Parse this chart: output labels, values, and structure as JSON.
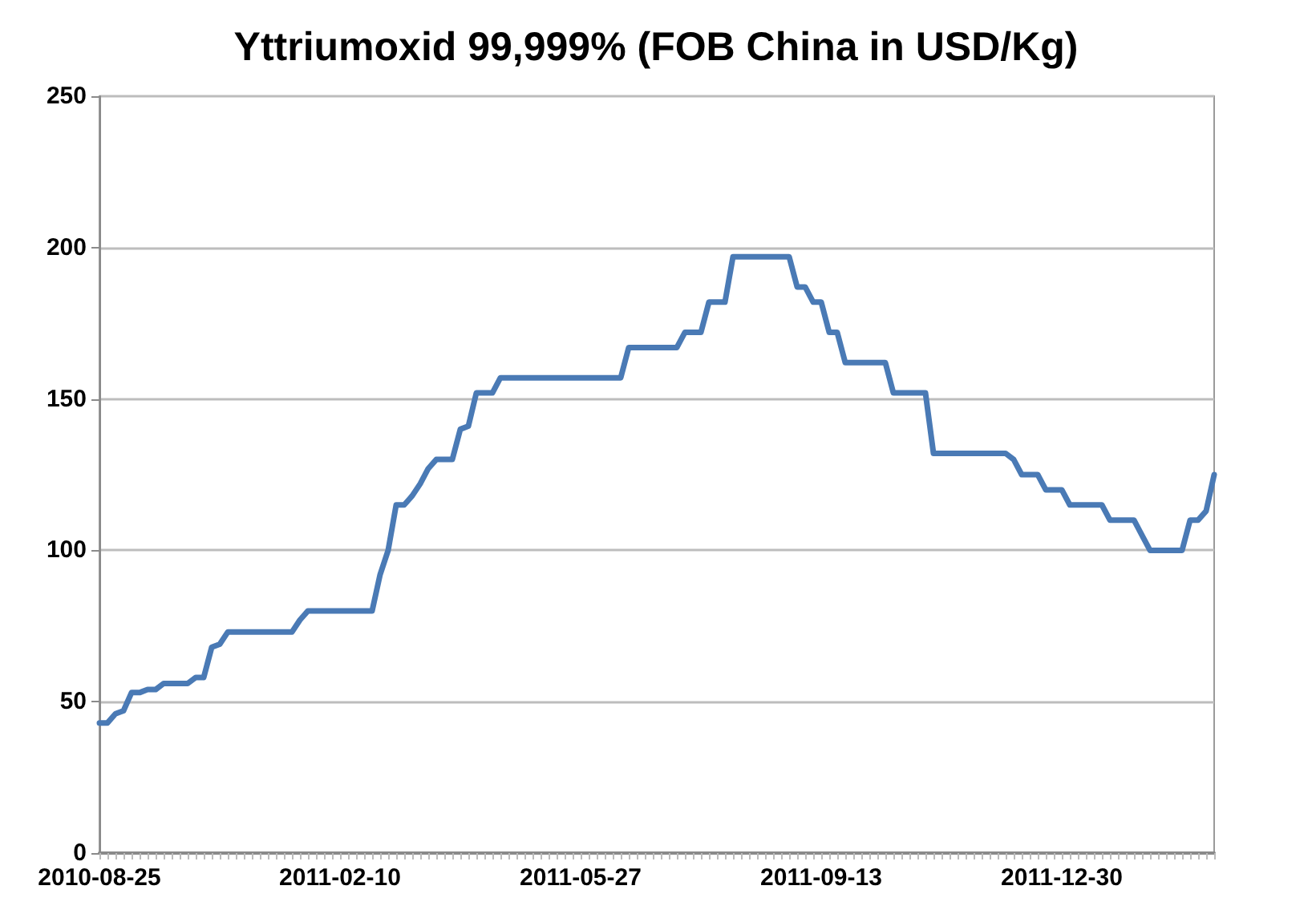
{
  "chart_data": {
    "type": "line",
    "title": "Yttriumoxid 99,999% (FOB China in USD/Kg)",
    "categories": [
      "2010-08-25",
      null,
      null,
      null,
      null,
      null,
      null,
      null,
      null,
      null,
      null,
      null,
      null,
      null,
      null,
      null,
      null,
      null,
      null,
      null,
      null,
      null,
      null,
      null,
      null,
      null,
      null,
      null,
      null,
      null,
      "2011-02-10",
      null,
      null,
      null,
      null,
      null,
      null,
      null,
      null,
      null,
      null,
      null,
      null,
      null,
      null,
      null,
      null,
      null,
      null,
      null,
      null,
      null,
      null,
      null,
      null,
      null,
      null,
      null,
      null,
      null,
      "2011-05-27",
      null,
      null,
      null,
      null,
      null,
      null,
      null,
      null,
      null,
      null,
      null,
      null,
      null,
      null,
      null,
      null,
      null,
      null,
      null,
      null,
      null,
      null,
      null,
      null,
      null,
      null,
      null,
      null,
      null,
      "2011-09-13",
      null,
      null,
      null,
      null,
      null,
      null,
      null,
      null,
      null,
      null,
      null,
      null,
      null,
      null,
      null,
      null,
      null,
      null,
      null,
      null,
      null,
      null,
      null,
      null,
      null,
      null,
      null,
      null,
      null,
      "2011-12-30",
      null,
      null,
      null,
      null,
      null,
      null,
      null,
      null,
      null,
      null,
      null,
      null,
      null,
      null,
      null,
      null,
      null,
      null,
      null
    ],
    "series": [
      {
        "color": "#4a7ab5",
        "values": [
          43,
          43,
          46,
          47,
          53,
          53,
          54,
          54,
          56,
          56,
          56,
          56,
          58,
          58,
          68,
          69,
          73,
          73,
          73,
          73,
          73,
          73,
          73,
          73,
          73,
          77,
          80,
          80,
          80,
          80,
          80,
          80,
          80,
          80,
          80,
          92,
          100,
          115,
          115,
          118,
          122,
          127,
          130,
          130,
          130,
          140,
          141,
          152,
          152,
          152,
          157,
          157,
          157,
          157,
          157,
          157,
          157,
          157,
          157,
          157,
          157,
          157,
          157,
          157,
          157,
          157,
          167,
          167,
          167,
          167,
          167,
          167,
          167,
          172,
          172,
          172,
          182,
          182,
          182,
          197,
          197,
          197,
          197,
          197,
          197,
          197,
          197,
          187,
          187,
          182,
          182,
          172,
          172,
          162,
          162,
          162,
          162,
          162,
          162,
          152,
          152,
          152,
          152,
          152,
          132,
          132,
          132,
          132,
          132,
          132,
          132,
          132,
          132,
          132,
          130,
          125,
          125,
          125,
          120,
          120,
          120,
          115,
          115,
          115,
          115,
          115,
          110,
          110,
          110,
          110,
          105,
          100,
          100,
          100,
          100,
          100,
          110,
          110,
          113,
          125
        ]
      }
    ],
    "ylim": [
      0,
      250
    ],
    "yticks": [
      0,
      50,
      100,
      150,
      200,
      250
    ],
    "grid": "y",
    "marker": "none",
    "line_style": "solid"
  }
}
